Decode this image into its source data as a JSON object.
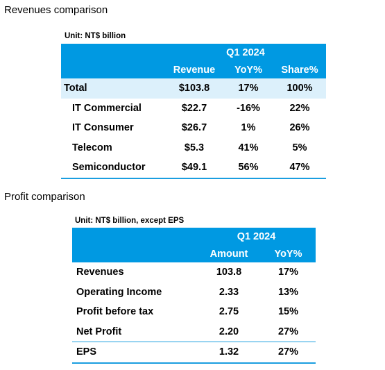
{
  "revenues": {
    "title": "Revenues comparison",
    "unit": "Unit: NT$ billion",
    "period": "Q1 2024",
    "columns": [
      "Revenue",
      "YoY%",
      "Share%"
    ],
    "rows": [
      [
        "Total",
        "$103.8",
        "17%",
        "100%"
      ],
      [
        "IT Commercial",
        "$22.7",
        "-16%",
        "22%"
      ],
      [
        "IT Consumer",
        "$26.7",
        "1%",
        "26%"
      ],
      [
        "Telecom",
        "$5.3",
        "41%",
        "5%"
      ],
      [
        "Semiconductor",
        "$49.1",
        "56%",
        "47%"
      ]
    ]
  },
  "profit": {
    "title": "Profit comparison",
    "unit": "Unit: NT$ billion, except EPS",
    "period": "Q1 2024",
    "columns": [
      "Amount",
      "YoY%"
    ],
    "rows": [
      [
        "Revenues",
        "103.8",
        "17%"
      ],
      [
        "Operating Income",
        "2.33",
        "13%"
      ],
      [
        "Profit before tax",
        "2.75",
        "15%"
      ],
      [
        "Net Profit",
        "2.20",
        "27%"
      ],
      [
        "EPS",
        "1.32",
        "27%"
      ]
    ]
  }
}
